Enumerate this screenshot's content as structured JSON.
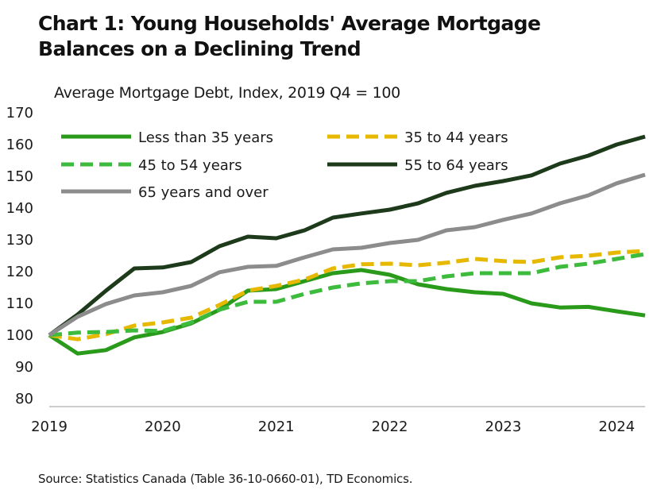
{
  "title_line1": "Chart 1: Young Households' Average Mortgage",
  "title_line2": "Balances on a Declining Trend",
  "source": "Source: Statistics Canada (Table 36-10-0660-01), TD Economics.",
  "chart_data": {
    "type": "line",
    "title": "Chart 1: Young Households' Average Mortgage Balances on a Declining Trend",
    "subtitle": "Average Mortgage Debt, Index, 2019 Q4 = 100",
    "xlabel": "",
    "ylabel": "",
    "ylim": [
      80,
      170
    ],
    "yticks": [
      80,
      90,
      100,
      110,
      120,
      130,
      140,
      150,
      160,
      170
    ],
    "x_tick_labels": [
      "2019",
      "2020",
      "2021",
      "2022",
      "2023",
      "2024"
    ],
    "x": [
      "2019 Q4",
      "2020 Q1",
      "2020 Q2",
      "2020 Q3",
      "2020 Q4",
      "2021 Q1",
      "2021 Q2",
      "2021 Q3",
      "2021 Q4",
      "2022 Q1",
      "2022 Q2",
      "2022 Q3",
      "2022 Q4",
      "2023 Q1",
      "2023 Q2",
      "2023 Q3",
      "2023 Q4",
      "2024 Q1",
      "2024 Q2",
      "2024 Q3",
      "2024 Q4",
      "2025 Q1"
    ],
    "grid": false,
    "legend_position": "top-left",
    "series": [
      {
        "name": "Less than 35 years",
        "color": "#2a9a1a",
        "style": "solid",
        "values": [
          100,
          94.2,
          95.3,
          99.3,
          101.0,
          103.7,
          108.0,
          114.0,
          114.5,
          117.0,
          119.5,
          120.5,
          119.0,
          116.0,
          114.5,
          113.5,
          113.0,
          110.0,
          108.7,
          108.9,
          107.5,
          106.2
        ]
      },
      {
        "name": "35 to 44 years",
        "color": "#e6b800",
        "style": "dashed",
        "values": [
          100,
          98.7,
          100.3,
          103.0,
          104.0,
          105.5,
          109.5,
          114.0,
          115.5,
          117.5,
          121.0,
          122.3,
          122.5,
          122.0,
          122.8,
          124.0,
          123.3,
          123.0,
          124.5,
          125.0,
          126.0,
          126.5
        ]
      },
      {
        "name": "45 to 54 years",
        "color": "#3dbb3d",
        "style": "dashed",
        "values": [
          100,
          100.8,
          101.0,
          101.5,
          101.3,
          104.0,
          108.0,
          110.5,
          110.5,
          113.0,
          115.0,
          116.3,
          117.0,
          117.0,
          118.5,
          119.5,
          119.5,
          119.5,
          121.5,
          122.5,
          124.0,
          125.5
        ]
      },
      {
        "name": "55 to 64 years",
        "color": "#1d3a1a",
        "style": "solid",
        "values": [
          100,
          106.5,
          114.0,
          121.0,
          121.3,
          123.0,
          128.0,
          131.0,
          130.5,
          133.0,
          137.0,
          138.3,
          139.5,
          141.5,
          144.8,
          147.0,
          148.5,
          150.3,
          154.0,
          156.5,
          160.0,
          162.5
        ]
      },
      {
        "name": "65 years and over",
        "color": "#8c8c8c",
        "style": "solid",
        "values": [
          100,
          105.8,
          109.8,
          112.5,
          113.5,
          115.5,
          119.8,
          121.5,
          121.8,
          124.5,
          127.0,
          127.5,
          129.0,
          130.0,
          133.0,
          134.0,
          136.3,
          138.3,
          141.5,
          144.0,
          147.8,
          150.5
        ]
      }
    ]
  }
}
